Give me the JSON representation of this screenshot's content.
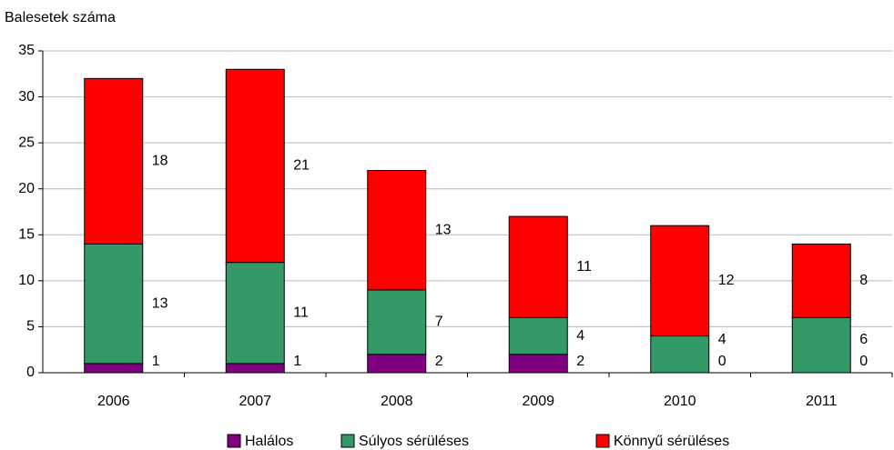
{
  "chart_data": {
    "type": "stacked_bar",
    "y_axis_label": "Balesetek száma",
    "categories": [
      "2006",
      "2007",
      "2008",
      "2009",
      "2010",
      "2011"
    ],
    "series": [
      {
        "name": "Halálos",
        "color": "#800080",
        "values": [
          1,
          1,
          2,
          2,
          0,
          0
        ]
      },
      {
        "name": "Súlyos sérüléses",
        "color": "#339966",
        "values": [
          13,
          11,
          7,
          4,
          4,
          6
        ]
      },
      {
        "name": "Könnyű sérüléses",
        "color": "#ff0000",
        "values": [
          18,
          21,
          13,
          11,
          12,
          8
        ]
      }
    ],
    "ylim": [
      0,
      35
    ],
    "yticks": [
      0,
      5,
      10,
      15,
      20,
      25,
      30,
      35
    ],
    "grid": true,
    "legend": "bottom"
  }
}
